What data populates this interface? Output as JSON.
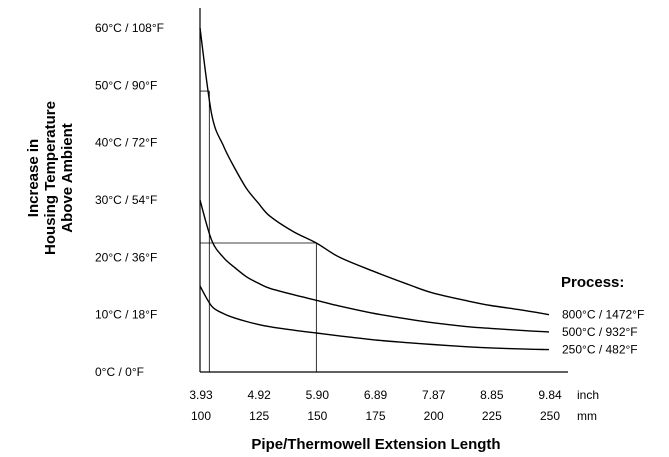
{
  "chart_data": {
    "type": "line",
    "xlabel": "Pipe/Thermowell Extension Length",
    "ylabel_lines": [
      "Increase in",
      "Housing Temperature",
      "Above Ambient"
    ],
    "x_unit": "mm",
    "x_ticks_mm": [
      "100",
      "125",
      "150",
      "175",
      "200",
      "225",
      "250"
    ],
    "x_ticks_inch": [
      "3.93",
      "4.92",
      "5.90",
      "6.89",
      "7.87",
      "8.85",
      "9.84"
    ],
    "x_unit_labels": [
      "inch",
      "mm"
    ],
    "xlim": [
      100,
      250
    ],
    "y_ticks": [
      "0°C / 0°F",
      "10°C / 18°F",
      "20°C / 36°F",
      "30°C / 54°F",
      "40°C / 72°F",
      "50°C / 90°F",
      "60°C / 108°F"
    ],
    "ylim": [
      0,
      60
    ],
    "legend_title": "Process:",
    "series": [
      {
        "name": "800°C / 1472°F",
        "x": [
          100,
          105,
          110,
          115,
          120,
          125,
          130,
          140,
          150,
          160,
          175,
          190,
          200,
          215,
          225,
          240,
          250
        ],
        "y": [
          60,
          45,
          39.5,
          35.5,
          32,
          29.5,
          27.2,
          24.5,
          22.5,
          20,
          17.5,
          15.2,
          13.8,
          12.4,
          11.6,
          10.7,
          10
        ]
      },
      {
        "name": "500°C / 932°F",
        "x": [
          100,
          105,
          110,
          115,
          120,
          125,
          130,
          140,
          150,
          160,
          175,
          190,
          200,
          215,
          225,
          240,
          250
        ],
        "y": [
          30,
          23,
          20,
          18.2,
          16.6,
          15.5,
          14.6,
          13.5,
          12.5,
          11.5,
          10.2,
          9.2,
          8.6,
          7.9,
          7.6,
          7.2,
          7
        ]
      },
      {
        "name": "250°C / 482°F",
        "x": [
          100,
          105,
          110,
          115,
          120,
          125,
          130,
          140,
          150,
          160,
          175,
          190,
          200,
          215,
          225,
          240,
          250
        ],
        "y": [
          15,
          11.5,
          10.2,
          9.4,
          8.8,
          8.3,
          7.9,
          7.3,
          6.8,
          6.3,
          5.6,
          5.1,
          4.8,
          4.4,
          4.2,
          4,
          3.9
        ]
      }
    ],
    "reference_lines": [
      {
        "x": 100,
        "y": 60
      },
      {
        "x": 104,
        "y": 49
      },
      {
        "x": 150,
        "y": 22.5
      }
    ]
  }
}
